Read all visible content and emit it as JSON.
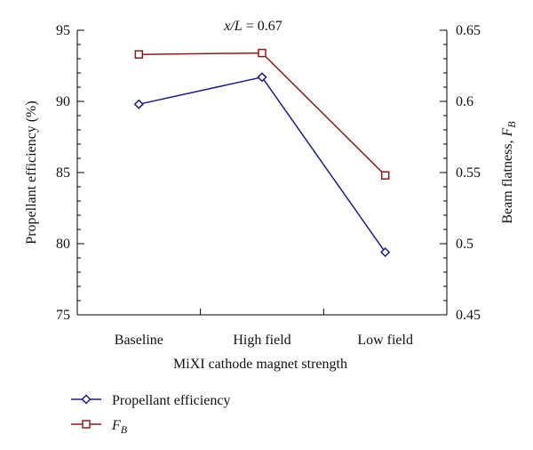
{
  "chart_data": {
    "type": "line",
    "annotation": {
      "var": "x/L",
      "eq": " = ",
      "val": "0.67"
    },
    "xlabel": "MiXI cathode magnet strength",
    "categories": [
      "Baseline",
      "High field",
      "Low field"
    ],
    "ylabel_left": "Propellant efficiency (%)",
    "ylabel_right": {
      "text": "Beam flatness, ",
      "sym": "F",
      "sub": "B"
    },
    "y_left": {
      "lim": [
        75,
        95
      ],
      "ticks": [
        75,
        80,
        85,
        90,
        95
      ]
    },
    "y_right": {
      "lim": [
        0.45,
        0.65
      ],
      "ticks": [
        "0.45",
        "0.5",
        "0.55",
        "0.6",
        "0.65"
      ]
    },
    "series": [
      {
        "name": "Propellant efficiency",
        "axis": "left",
        "marker": "diamond",
        "values": [
          89.8,
          91.7,
          79.4
        ]
      },
      {
        "name_sym": "F",
        "name_sub": "B",
        "axis": "right",
        "marker": "square",
        "values": [
          0.633,
          0.634,
          0.548
        ]
      }
    ],
    "colors": {
      "efficiency": "#1c1c8c",
      "flatness": "#8c1c1c"
    },
    "grid": false,
    "legend_position": "bottom-left"
  }
}
